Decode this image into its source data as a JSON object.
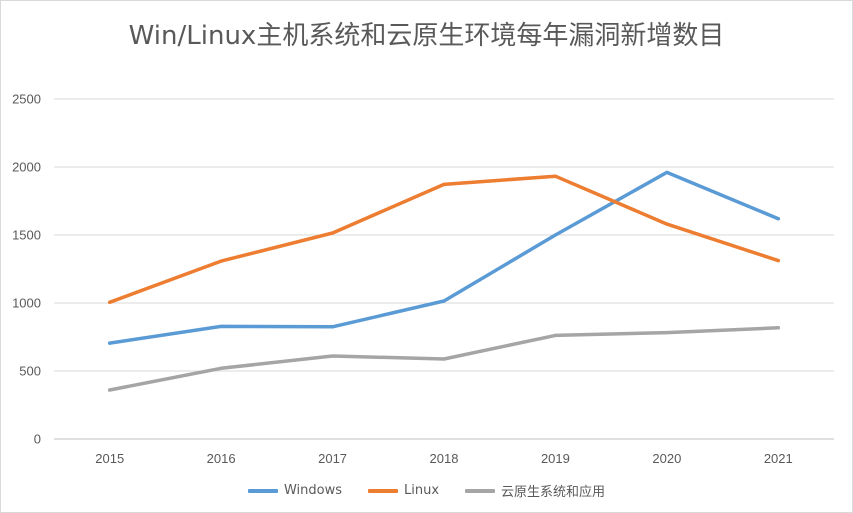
{
  "chart_data": {
    "type": "line",
    "title": "Win/Linux主机系统和云原生环境每年漏洞新增数目",
    "xlabel": "",
    "ylabel": "",
    "categories": [
      "2015",
      "2016",
      "2017",
      "2018",
      "2019",
      "2020",
      "2021"
    ],
    "ylim": [
      0,
      2500
    ],
    "yticks": [
      "0",
      "500",
      "1000",
      "1500",
      "2000",
      "2500"
    ],
    "grid": true,
    "legend_position": "bottom",
    "series": [
      {
        "name": "Windows",
        "color": "#5b9bd5",
        "values": [
          705,
          828,
          825,
          1015,
          1500,
          1960,
          1620
        ]
      },
      {
        "name": "Linux",
        "color": "#ed7d31",
        "values": [
          1005,
          1308,
          1515,
          1872,
          1932,
          1580,
          1312
        ]
      },
      {
        "name": "云原生系统和应用",
        "color": "#a5a5a5",
        "values": [
          360,
          520,
          610,
          588,
          762,
          782,
          818
        ]
      }
    ]
  }
}
